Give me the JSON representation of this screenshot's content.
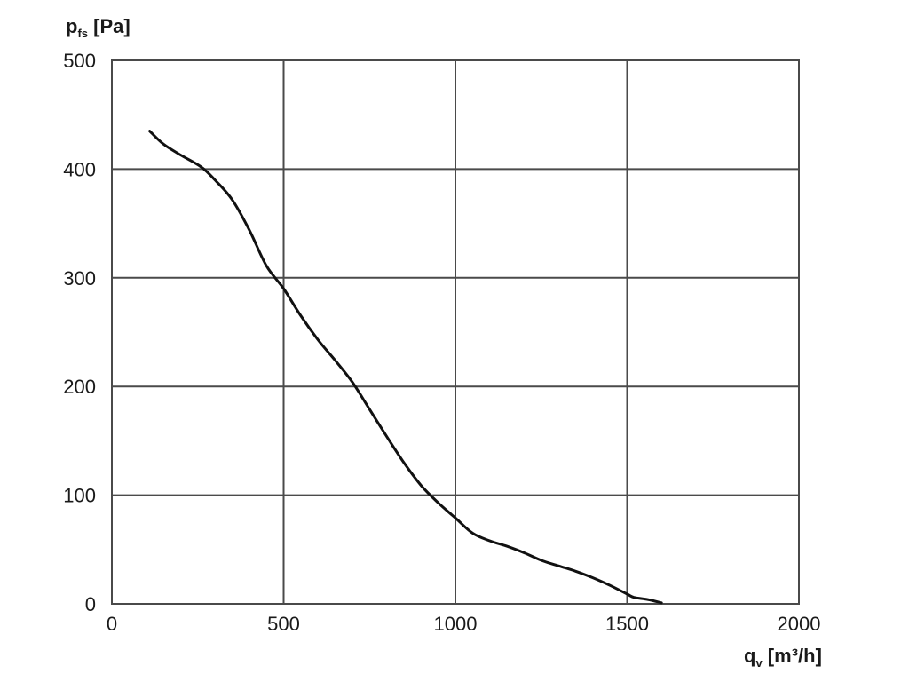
{
  "chart_data": {
    "type": "line",
    "title": "",
    "ylabel": {
      "main": "p",
      "sub": "fs",
      "unit": " [Pa]"
    },
    "xlabel": {
      "main": "q",
      "sub": "v",
      "unit": " [m³/h]"
    },
    "xlim": [
      0,
      2000
    ],
    "ylim": [
      0,
      500
    ],
    "x_ticks": [
      0,
      500,
      1000,
      1500,
      2000
    ],
    "y_ticks": [
      0,
      100,
      200,
      300,
      400,
      500
    ],
    "grid": true,
    "legend": "none",
    "line_color": "#111111",
    "grid_color": "#4a4a4a",
    "series": [
      {
        "x": [
          110,
          150,
          200,
          260,
          300,
          350,
          400,
          450,
          500,
          550,
          600,
          650,
          700,
          750,
          800,
          850,
          900,
          950,
          1000,
          1050,
          1100,
          1150,
          1200,
          1250,
          1300,
          1350,
          1400,
          1450,
          1500,
          1520,
          1560,
          1600
        ],
        "y": [
          435,
          423,
          413,
          402,
          390,
          372,
          344,
          311,
          290,
          265,
          243,
          224,
          204,
          179,
          154,
          130,
          109,
          93,
          79,
          65,
          58,
          53,
          47,
          40,
          35,
          30,
          24,
          17,
          9,
          6,
          4,
          1
        ]
      }
    ]
  }
}
